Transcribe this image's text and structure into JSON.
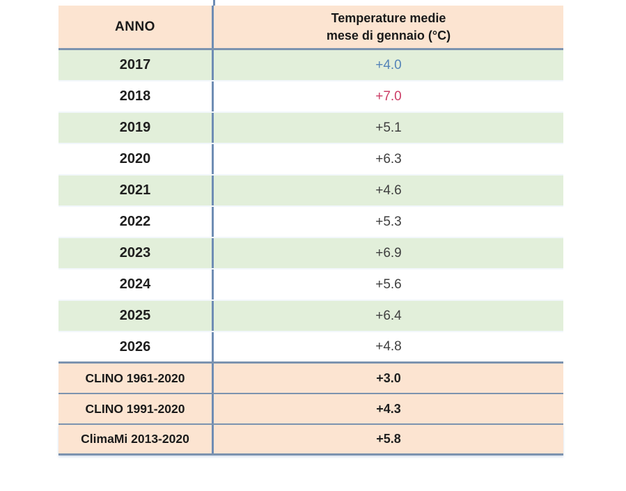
{
  "table": {
    "header": {
      "anno": "ANNO",
      "temp_line1": "Temperature medie",
      "temp_line2": "mese di gennaio (°C)"
    },
    "rows": [
      {
        "anno": "2017",
        "temp": "+4.0"
      },
      {
        "anno": "2018",
        "temp": "+7.0"
      },
      {
        "anno": "2019",
        "temp": "+5.1"
      },
      {
        "anno": "2020",
        "temp": "+6.3"
      },
      {
        "anno": "2021",
        "temp": "+4.6"
      },
      {
        "anno": "2022",
        "temp": "+5.3"
      },
      {
        "anno": "2023",
        "temp": "+6.9"
      },
      {
        "anno": "2024",
        "temp": "+5.6"
      },
      {
        "anno": "2025",
        "temp": "+6.4"
      },
      {
        "anno": "2026",
        "temp": "+4.8"
      }
    ],
    "clino_rows": [
      {
        "anno": "CLINO 1961-2020",
        "temp": "+3.0"
      },
      {
        "anno": "CLINO 1991-2020",
        "temp": "+4.3"
      },
      {
        "anno": "ClimaMi 2013-2020",
        "temp": "+5.8"
      }
    ],
    "colors": {
      "header_background": "#fce4d1",
      "green_row_background": "#e2efda",
      "white_row_background": "#ffffff",
      "clino_row_background": "#fce4d1",
      "border_blue_gray": "#7c93af",
      "divider_blue": "#6f8db4",
      "value_2017_blue": "#5584b8",
      "value_2018_red": "#cc3d66"
    }
  }
}
